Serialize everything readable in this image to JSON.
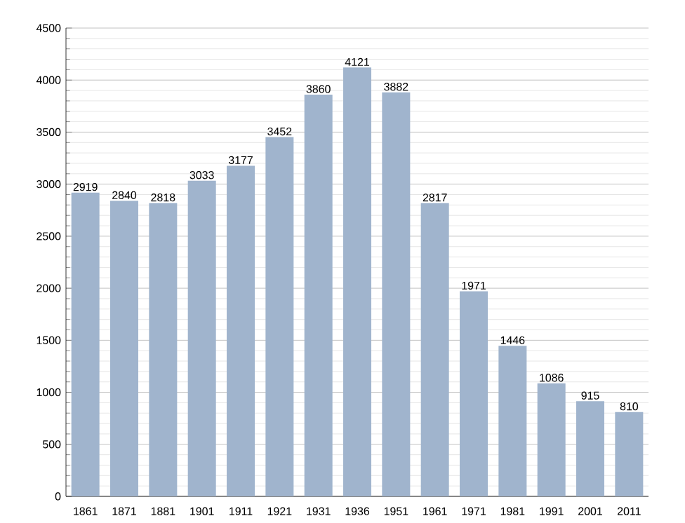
{
  "chart_data": {
    "type": "bar",
    "categories": [
      "1861",
      "1871",
      "1881",
      "1901",
      "1911",
      "1921",
      "1931",
      "1936",
      "1951",
      "1961",
      "1971",
      "1981",
      "1991",
      "2001",
      "2011"
    ],
    "values": [
      2919,
      2840,
      2818,
      3033,
      3177,
      3452,
      3860,
      4121,
      3882,
      2817,
      1971,
      1446,
      1086,
      915,
      810
    ],
    "color": "#a0b4cd",
    "ylim": [
      0,
      4500
    ],
    "yticks": [
      0,
      500,
      1000,
      1500,
      2000,
      2500,
      3000,
      3500,
      4000,
      4500
    ],
    "grid": "y",
    "data_labels": true
  }
}
